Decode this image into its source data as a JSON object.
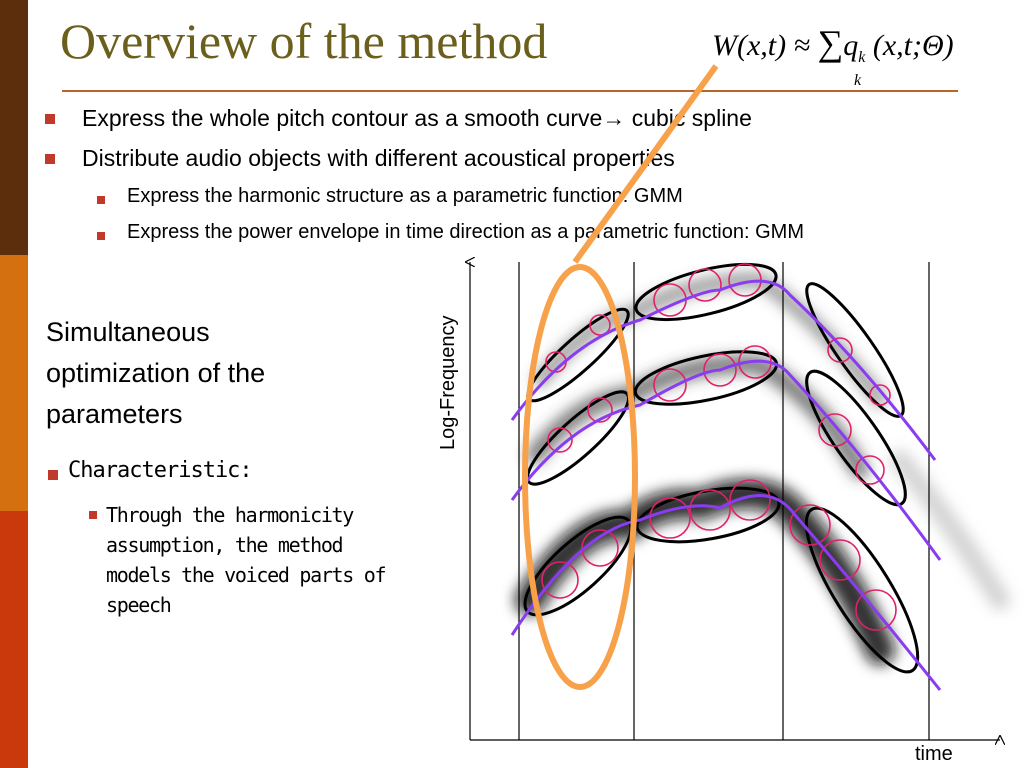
{
  "slide": {
    "title": "Overview of the method",
    "formula": {
      "lhs": "W(x,t) ≈",
      "sum": "∑",
      "sum_sub": "k",
      "term": "q",
      "term_sub": "k",
      "args": "(x,t;Θ)"
    },
    "bullets": [
      {
        "text": "Express the whole pitch contour as a smooth curve→ cubic spline"
      },
      {
        "text": "Distribute audio objects with different acoustical properties",
        "sub": [
          "Express the harmonic structure as a parametric function: GMM",
          "Express the power envelope in time direction as a parametric function: GMM"
        ]
      }
    ],
    "left_heading": [
      "Simultaneous",
      "optimization of the",
      "parameters"
    ],
    "characteristic": {
      "text": "Characteristic:",
      "sub": [
        "Through the harmonicity",
        "assumption, the method",
        "models the voiced parts of",
        "speech"
      ]
    },
    "figure": {
      "y_label": "Log-Frequency",
      "x_label": "time"
    }
  }
}
